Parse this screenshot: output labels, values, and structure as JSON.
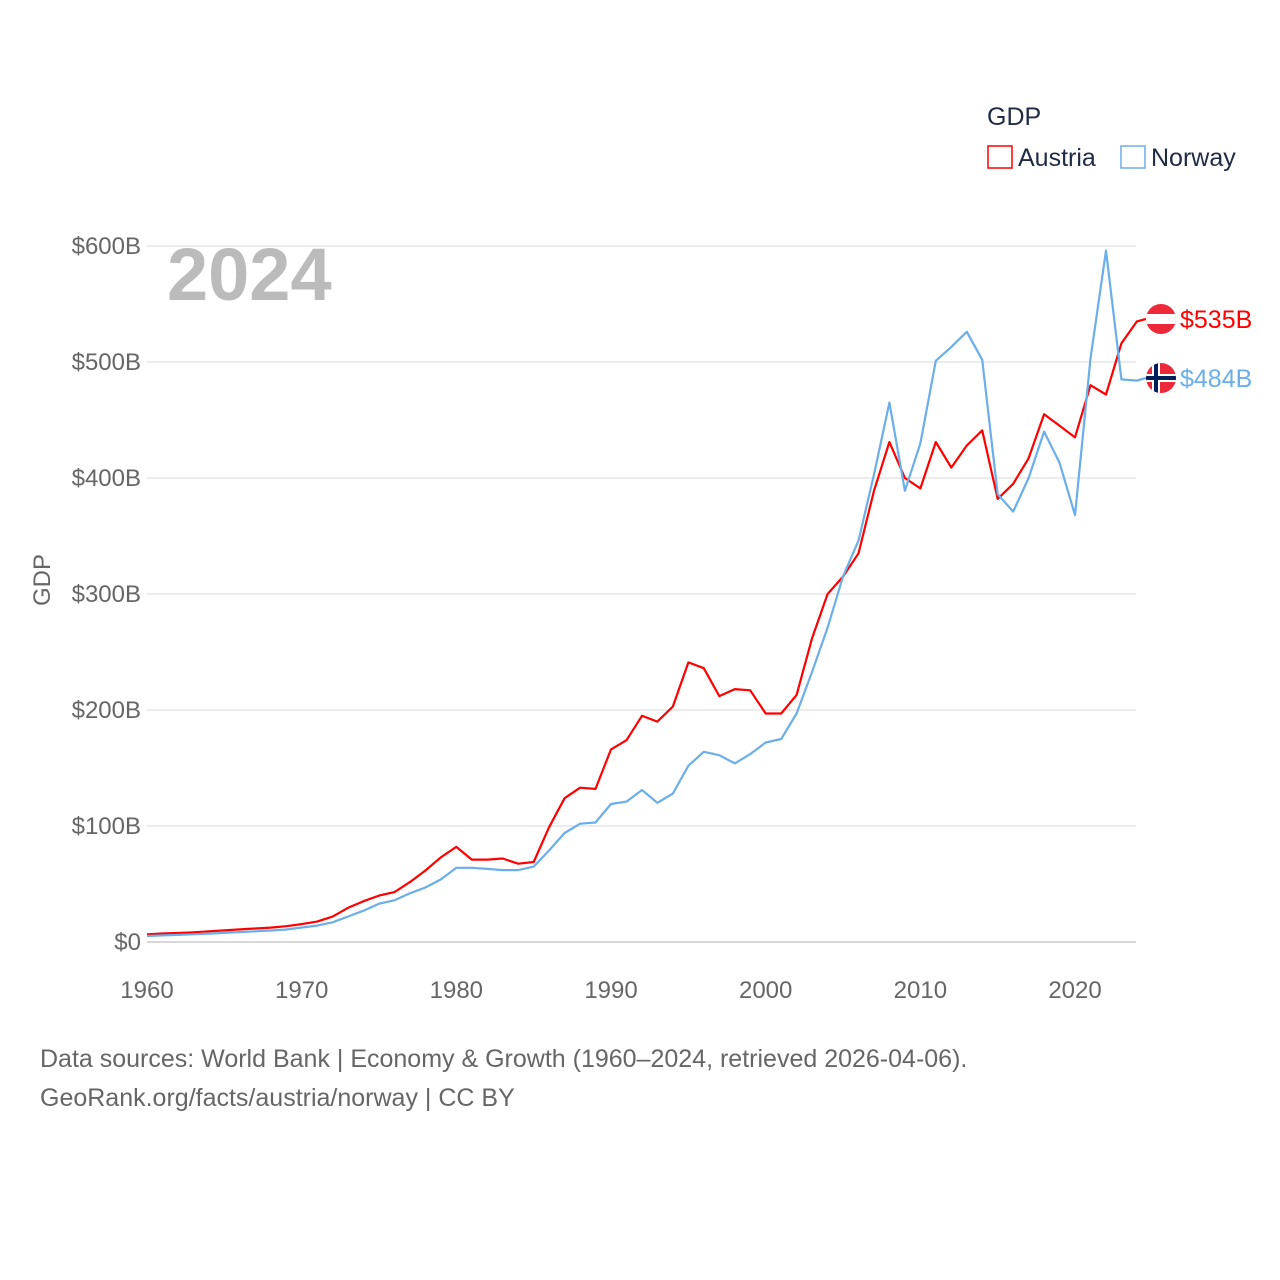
{
  "chart_data": {
    "type": "line",
    "title": "2024",
    "ylabel": "GDP",
    "xlabel": "",
    "legend_title": "GDP",
    "legend_position": "top-right",
    "xlim": [
      1960,
      2024
    ],
    "ylim": [
      0,
      600
    ],
    "x_ticks": [
      1960,
      1970,
      1980,
      1990,
      2000,
      2010,
      2020
    ],
    "x_tick_labels": [
      "1960",
      "1970",
      "1980",
      "1990",
      "2000",
      "2010",
      "2020"
    ],
    "y_ticks": [
      0,
      100,
      200,
      300,
      400,
      500,
      600
    ],
    "y_tick_labels": [
      "$0",
      "$100B",
      "$200B",
      "$300B",
      "$400B",
      "$500B",
      "$600B"
    ],
    "grid": true,
    "x": [
      1960,
      1961,
      1962,
      1963,
      1964,
      1965,
      1966,
      1967,
      1968,
      1969,
      1970,
      1971,
      1972,
      1973,
      1974,
      1975,
      1976,
      1977,
      1978,
      1979,
      1980,
      1981,
      1982,
      1983,
      1984,
      1985,
      1986,
      1987,
      1988,
      1989,
      1990,
      1991,
      1992,
      1993,
      1994,
      1995,
      1996,
      1997,
      1998,
      1999,
      2000,
      2001,
      2002,
      2003,
      2004,
      2005,
      2006,
      2007,
      2008,
      2009,
      2010,
      2011,
      2012,
      2013,
      2014,
      2015,
      2016,
      2017,
      2018,
      2019,
      2020,
      2021,
      2022,
      2023,
      2024
    ],
    "series": [
      {
        "name": "Austria",
        "color": "#ff0000",
        "end_label": "$535B",
        "values": [
          6.6,
          7.3,
          7.8,
          8.4,
          9.2,
          10,
          10.9,
          11.6,
          12.4,
          13.6,
          15.4,
          17.6,
          21.9,
          29.5,
          35.2,
          40,
          43,
          51.6,
          61.6,
          73,
          82,
          71,
          71,
          72,
          67.5,
          69,
          99,
          124,
          133,
          132,
          166,
          174,
          195,
          190,
          203,
          241,
          236,
          212,
          218,
          217,
          197,
          197,
          213,
          262,
          300,
          315,
          335,
          389,
          431,
          400,
          391,
          431,
          409,
          428,
          441,
          382,
          395,
          417,
          455,
          445,
          435,
          480,
          472,
          516,
          535
        ]
      },
      {
        "name": "Norway",
        "color": "#6aaeea",
        "end_label": "$484B",
        "values": [
          5.2,
          5.7,
          6.1,
          6.6,
          7.2,
          7.9,
          8.5,
          9.2,
          9.9,
          10.8,
          12.5,
          14.1,
          17,
          22,
          27,
          33,
          36,
          42,
          47,
          54,
          64,
          64,
          63,
          62,
          62,
          65,
          79,
          94,
          102,
          103,
          119,
          121,
          131,
          120,
          128,
          152,
          164,
          161,
          154,
          162,
          172,
          175,
          197,
          233,
          271,
          315,
          346,
          403,
          465,
          389,
          430,
          501,
          513,
          526,
          502,
          386,
          371,
          400,
          440,
          413,
          368,
          503,
          596,
          485,
          484
        ]
      }
    ]
  },
  "footer": {
    "line1": "Data sources: World Bank | Economy & Growth (1960–2024, retrieved 2026-04-06).",
    "line2": "GeoRank.org/facts/austria/norway | CC BY"
  }
}
